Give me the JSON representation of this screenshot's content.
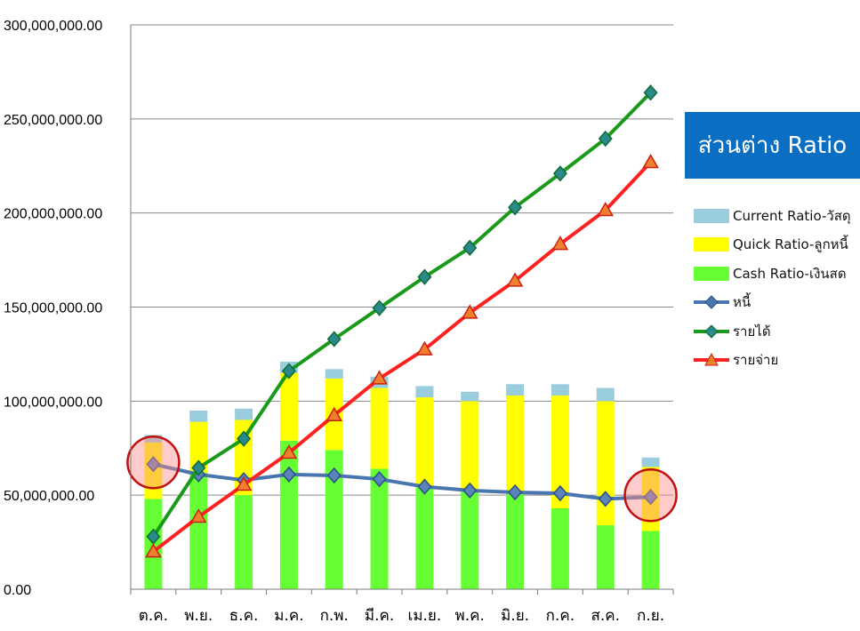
{
  "legend_title": "ส่วนต่าง Ratio",
  "chart_data": {
    "type": "bar",
    "categories": [
      "ต.ค.",
      "พ.ย.",
      "ธ.ค.",
      "ม.ค.",
      "ก.พ.",
      "มี.ค.",
      "เม.ย.",
      "พ.ค.",
      "มิ.ย.",
      "ก.ค.",
      "ส.ค.",
      "ก.ย."
    ],
    "ylim": [
      0,
      300000000
    ],
    "yticks": [
      "0.00",
      "50,000,000.00",
      "100,000,000.00",
      "150,000,000.00",
      "200,000,000.00",
      "250,000,000.00",
      "300,000,000.00"
    ],
    "ytick_values": [
      0,
      50000000,
      100000000,
      150000000,
      200000000,
      250000000,
      300000000
    ],
    "stacked_series": [
      {
        "name": "Cash Ratio-เงินสด",
        "color": "#66ff33",
        "values": [
          48000000,
          62000000,
          50000000,
          79000000,
          74000000,
          64000000,
          54000000,
          53000000,
          51000000,
          43000000,
          34000000,
          31000000
        ]
      },
      {
        "name": "Quick Ratio-ลูกหนี้",
        "color": "#ffff00",
        "values": [
          30000000,
          27000000,
          40000000,
          36000000,
          38000000,
          43000000,
          48000000,
          47000000,
          52000000,
          60000000,
          66000000,
          34000000
        ]
      },
      {
        "name": "Current Ratio-วัสดุ",
        "color": "#99ccdd",
        "values": [
          4000000,
          6000000,
          6000000,
          6000000,
          5000000,
          6000000,
          6000000,
          5000000,
          6000000,
          6000000,
          7000000,
          5000000
        ]
      }
    ],
    "line_series": [
      {
        "name": "หนี้",
        "color": "#4a76b0",
        "marker": "diamond",
        "values": [
          66500000,
          61000000,
          58000000,
          61000000,
          60500000,
          58500000,
          54500000,
          52500000,
          51500000,
          51000000,
          48000000,
          49000000
        ]
      },
      {
        "name": "รายได้",
        "color": "#1a9a1a",
        "marker": "diamond",
        "values": [
          28000000,
          64500000,
          80000000,
          116000000,
          133000000,
          149500000,
          166000000,
          181500000,
          203000000,
          221000000,
          239500000,
          264000000
        ]
      },
      {
        "name": "รายจ่าย",
        "color": "#ff2020",
        "marker": "triangle",
        "values": [
          20000000,
          38500000,
          55500000,
          72500000,
          92500000,
          112000000,
          127500000,
          147000000,
          164000000,
          183500000,
          201500000,
          227000000
        ]
      }
    ],
    "highlight_circles": [
      "ต.ค.",
      "ก.ย."
    ],
    "grid": true,
    "legend_position": "right"
  }
}
